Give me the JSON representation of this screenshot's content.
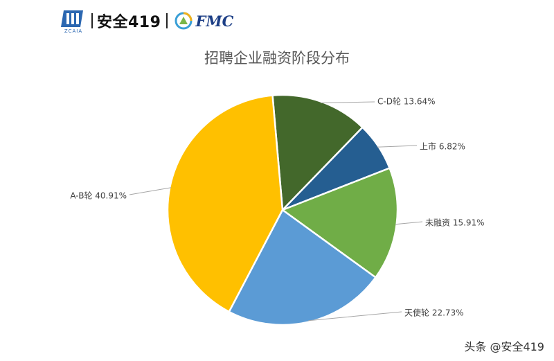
{
  "header": {
    "brand_mark_text": "ZCAIA",
    "brand_name": "安全419",
    "partner_name": "FMC"
  },
  "chart_data": {
    "type": "pie",
    "title": "招聘企业融资阶段分布",
    "slices": [
      {
        "label": "C-D轮",
        "value": 13.64,
        "value_label": "13.64%",
        "color": "#43682b"
      },
      {
        "label": "上市",
        "value": 6.82,
        "value_label": "6.82%",
        "color": "#255e91"
      },
      {
        "label": "未融资",
        "value": 15.91,
        "value_label": "15.91%",
        "color": "#70ad47"
      },
      {
        "label": "天使轮",
        "value": 22.73,
        "value_label": "22.73%",
        "color": "#5b9bd5"
      },
      {
        "label": "A-B轮",
        "value": 40.91,
        "value_label": "40.91%",
        "color": "#ffc000"
      }
    ]
  },
  "watermark": "头条 @安全419"
}
